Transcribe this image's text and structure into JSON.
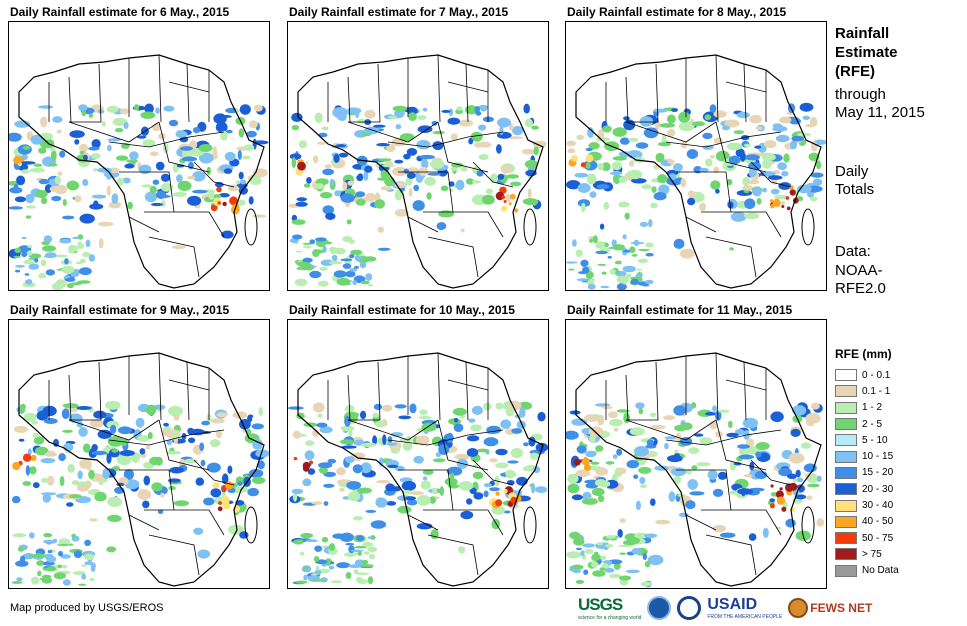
{
  "panels": [
    {
      "title": "Daily Rainfall estimate for 6 May., 2015"
    },
    {
      "title": "Daily Rainfall estimate for 7 May., 2015"
    },
    {
      "title": "Daily Rainfall estimate for 8 May., 2015"
    },
    {
      "title": "Daily Rainfall estimate for 9 May., 2015"
    },
    {
      "title": "Daily Rainfall estimate for 10 May., 2015"
    },
    {
      "title": "Daily Rainfall estimate for 11 May., 2015"
    }
  ],
  "side": {
    "title_line1": "Rainfall",
    "title_line2": "Estimate",
    "title_line3": "(RFE)",
    "through_label": "through",
    "through_date": "May 11, 2015",
    "totals_line1": "Daily",
    "totals_line2": "Totals",
    "data_line1": "Data:",
    "data_line2": "NOAA-",
    "data_line3": "RFE2.0"
  },
  "legend": {
    "title": "RFE (mm)",
    "items": [
      {
        "label": "0 - 0.1",
        "color": "#ffffff"
      },
      {
        "label": "0.1 - 1",
        "color": "#e8d5b5"
      },
      {
        "label": "1 - 2",
        "color": "#b8eeb0"
      },
      {
        "label": "2 - 5",
        "color": "#6fd66f"
      },
      {
        "label": "5 - 10",
        "color": "#b3ecf7"
      },
      {
        "label": "10 - 15",
        "color": "#7ec1f2"
      },
      {
        "label": "15 - 20",
        "color": "#3f8ee8"
      },
      {
        "label": "20 - 30",
        "color": "#1a5fd6"
      },
      {
        "label": "30 - 40",
        "color": "#ffe07a"
      },
      {
        "label": "40 - 50",
        "color": "#ffa51f"
      },
      {
        "label": "50 - 75",
        "color": "#f23c0c"
      },
      {
        "label": "> 75",
        "color": "#a31a1a"
      },
      {
        "label": "No Data",
        "color": "#9a9a9a"
      }
    ]
  },
  "footer": {
    "credit": "Map produced by USGS/EROS"
  },
  "logos": {
    "usgs": "USGS",
    "usgs_tagline": "science for a changing world",
    "usaid": "USAID",
    "usaid_tagline": "FROM THE AMERICAN PEOPLE",
    "fews": "FEWS NET"
  }
}
